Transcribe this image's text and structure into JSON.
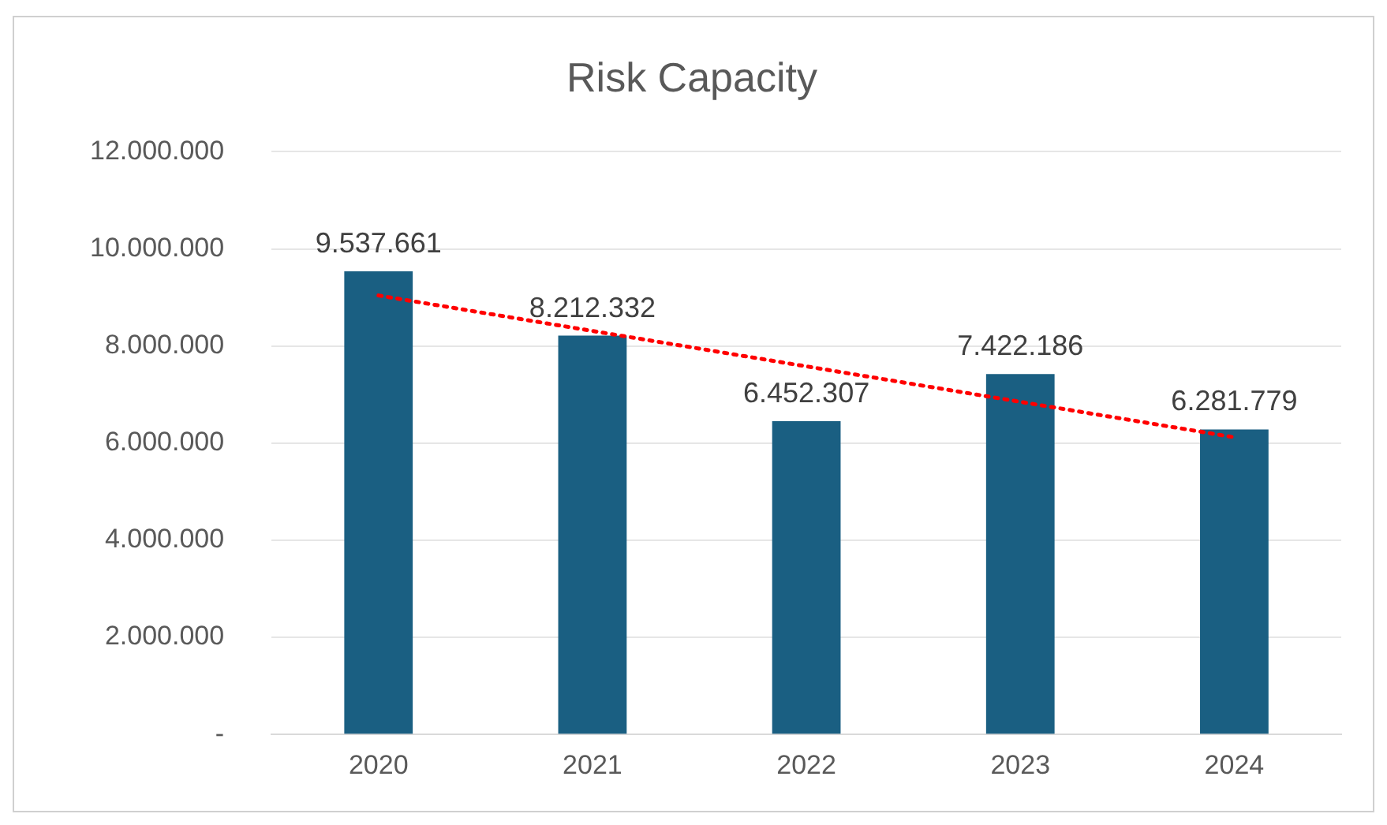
{
  "chart_data": {
    "type": "bar",
    "title": "Risk Capacity",
    "categories": [
      "2020",
      "2021",
      "2022",
      "2023",
      "2024"
    ],
    "series": [
      {
        "color": "#1a5f82",
        "values": [
          9537661,
          8212332,
          6452307,
          7422186,
          6281779
        ],
        "value_labels": [
          "9.537.661",
          "8.212.332",
          "6.452.307",
          "7.422.186",
          "6.281.779"
        ]
      },
      {
        "type": "line",
        "color": "#ff0000",
        "values": [
          9040000,
          null,
          null,
          null,
          6120000
        ],
        "line_style": "dotted",
        "marker": "none"
      }
    ],
    "ylim": [
      0,
      12000000
    ],
    "yticks": [
      {
        "value": 0,
        "label": "-"
      },
      {
        "value": 2000000,
        "label": "2.000.000"
      },
      {
        "value": 4000000,
        "label": "4.000.000"
      },
      {
        "value": 6000000,
        "label": "6.000.000"
      },
      {
        "value": 8000000,
        "label": "8.000.000"
      },
      {
        "value": 10000000,
        "label": "10.000.000"
      },
      {
        "value": 12000000,
        "label": "12.000.000"
      }
    ],
    "grid": "y",
    "legend": false
  }
}
